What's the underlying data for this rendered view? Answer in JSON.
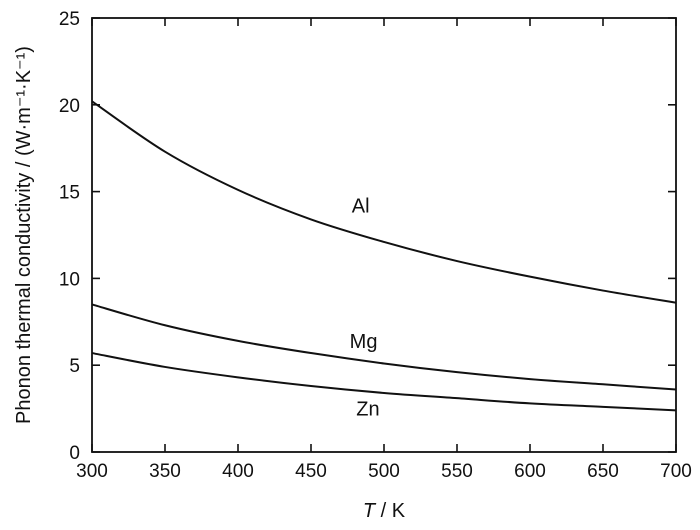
{
  "chart_data": {
    "type": "line",
    "title": "",
    "xlabel_italic": "T",
    "xlabel_rest": " / K",
    "ylabel": "Phonon thermal conductivity / (W·m⁻¹·K⁻¹)",
    "xlim": [
      300,
      700
    ],
    "ylim": [
      0,
      25
    ],
    "xticks": [
      300,
      350,
      400,
      450,
      500,
      550,
      600,
      650,
      700
    ],
    "yticks": [
      0,
      5,
      10,
      15,
      20,
      25
    ],
    "grid": false,
    "legend": "none",
    "x": [
      300,
      350,
      400,
      450,
      500,
      550,
      600,
      650,
      700
    ],
    "series": [
      {
        "name": "Al",
        "values": [
          20.2,
          17.3,
          15.1,
          13.4,
          12.1,
          11.0,
          10.1,
          9.3,
          8.6
        ],
        "label_at": [
          484,
          13.8
        ]
      },
      {
        "name": "Mg",
        "values": [
          8.5,
          7.3,
          6.4,
          5.7,
          5.1,
          4.6,
          4.2,
          3.9,
          3.6
        ],
        "label_at": [
          486,
          6.0
        ]
      },
      {
        "name": "Zn",
        "values": [
          5.7,
          4.9,
          4.3,
          3.8,
          3.4,
          3.1,
          2.8,
          2.6,
          2.4
        ],
        "label_at": [
          489,
          2.1
        ]
      }
    ]
  }
}
